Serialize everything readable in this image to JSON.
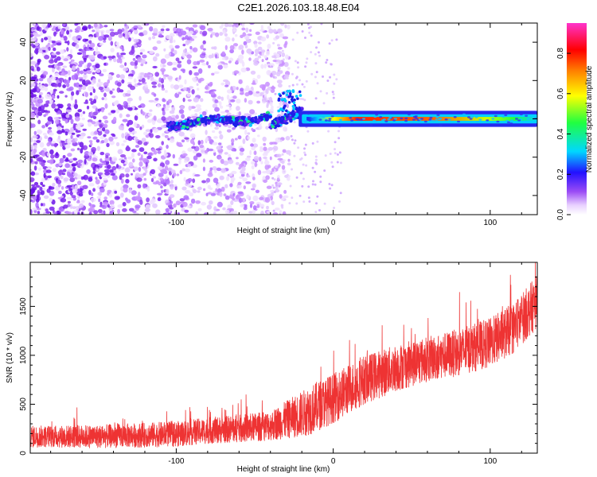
{
  "title": "C2E1.2026.103.18.48.E04",
  "colors": {
    "snr_line": "#ee3333",
    "frame": "#000000"
  },
  "chart_data": [
    {
      "type": "heatmap",
      "name": "spectrogram",
      "xlabel": "Height of straight line (km)",
      "ylabel": "Frequency (Hz)",
      "xlim": [
        -193,
        130
      ],
      "ylim": [
        -50,
        50
      ],
      "xticks": [
        -100,
        0,
        100
      ],
      "yticks": [
        -40,
        -20,
        0,
        20,
        40
      ],
      "colorbar": {
        "label": "Normalized spectral amplitude",
        "range": [
          0,
          0.95
        ],
        "ticks": [
          0.0,
          0.2,
          0.4,
          0.6,
          0.8
        ],
        "colormap": [
          "#ffffff",
          "#e3c6ff",
          "#8a3cf0",
          "#1a1aff",
          "#00cfff",
          "#22ff44",
          "#ffff00",
          "#ff8800",
          "#ff0000",
          "#ff33cc"
        ]
      },
      "description_regions": [
        {
          "x_range": [
            -193,
            -40
          ],
          "freq_range": [
            -50,
            50
          ],
          "amplitude": 0.12,
          "pattern": "broadband noise"
        },
        {
          "x_range": [
            -105,
            -20
          ],
          "freq_center": 0,
          "freq_width": 8,
          "amplitude": 0.3
        },
        {
          "x_range": [
            -20,
            130
          ],
          "freq_center": 0,
          "freq_width": 4,
          "amplitude": 0.8
        }
      ]
    },
    {
      "type": "line",
      "name": "snr",
      "xlabel": "Height of straight line (km)",
      "ylabel": "SNR (10 * v/v)",
      "xlim": [
        -193,
        130
      ],
      "ylim": [
        0,
        1950
      ],
      "xticks": [
        -100,
        0,
        100
      ],
      "yticks": [
        0,
        500,
        1000,
        1500
      ],
      "trend": [
        {
          "x": -193,
          "y": 170
        },
        {
          "x": -150,
          "y": 170
        },
        {
          "x": -100,
          "y": 195
        },
        {
          "x": -80,
          "y": 230
        },
        {
          "x": -60,
          "y": 250
        },
        {
          "x": -40,
          "y": 280
        },
        {
          "x": -20,
          "y": 400
        },
        {
          "x": 0,
          "y": 560
        },
        {
          "x": 20,
          "y": 750
        },
        {
          "x": 40,
          "y": 870
        },
        {
          "x": 60,
          "y": 960
        },
        {
          "x": 80,
          "y": 1030
        },
        {
          "x": 100,
          "y": 1130
        },
        {
          "x": 115,
          "y": 1280
        },
        {
          "x": 130,
          "y": 1550
        }
      ],
      "spread": [
        {
          "x": -193,
          "y": 140
        },
        {
          "x": -80,
          "y": 170
        },
        {
          "x": -40,
          "y": 190
        },
        {
          "x": -15,
          "y": 320
        },
        {
          "x": 10,
          "y": 320
        },
        {
          "x": 60,
          "y": 290
        },
        {
          "x": 130,
          "y": 340
        }
      ]
    }
  ]
}
